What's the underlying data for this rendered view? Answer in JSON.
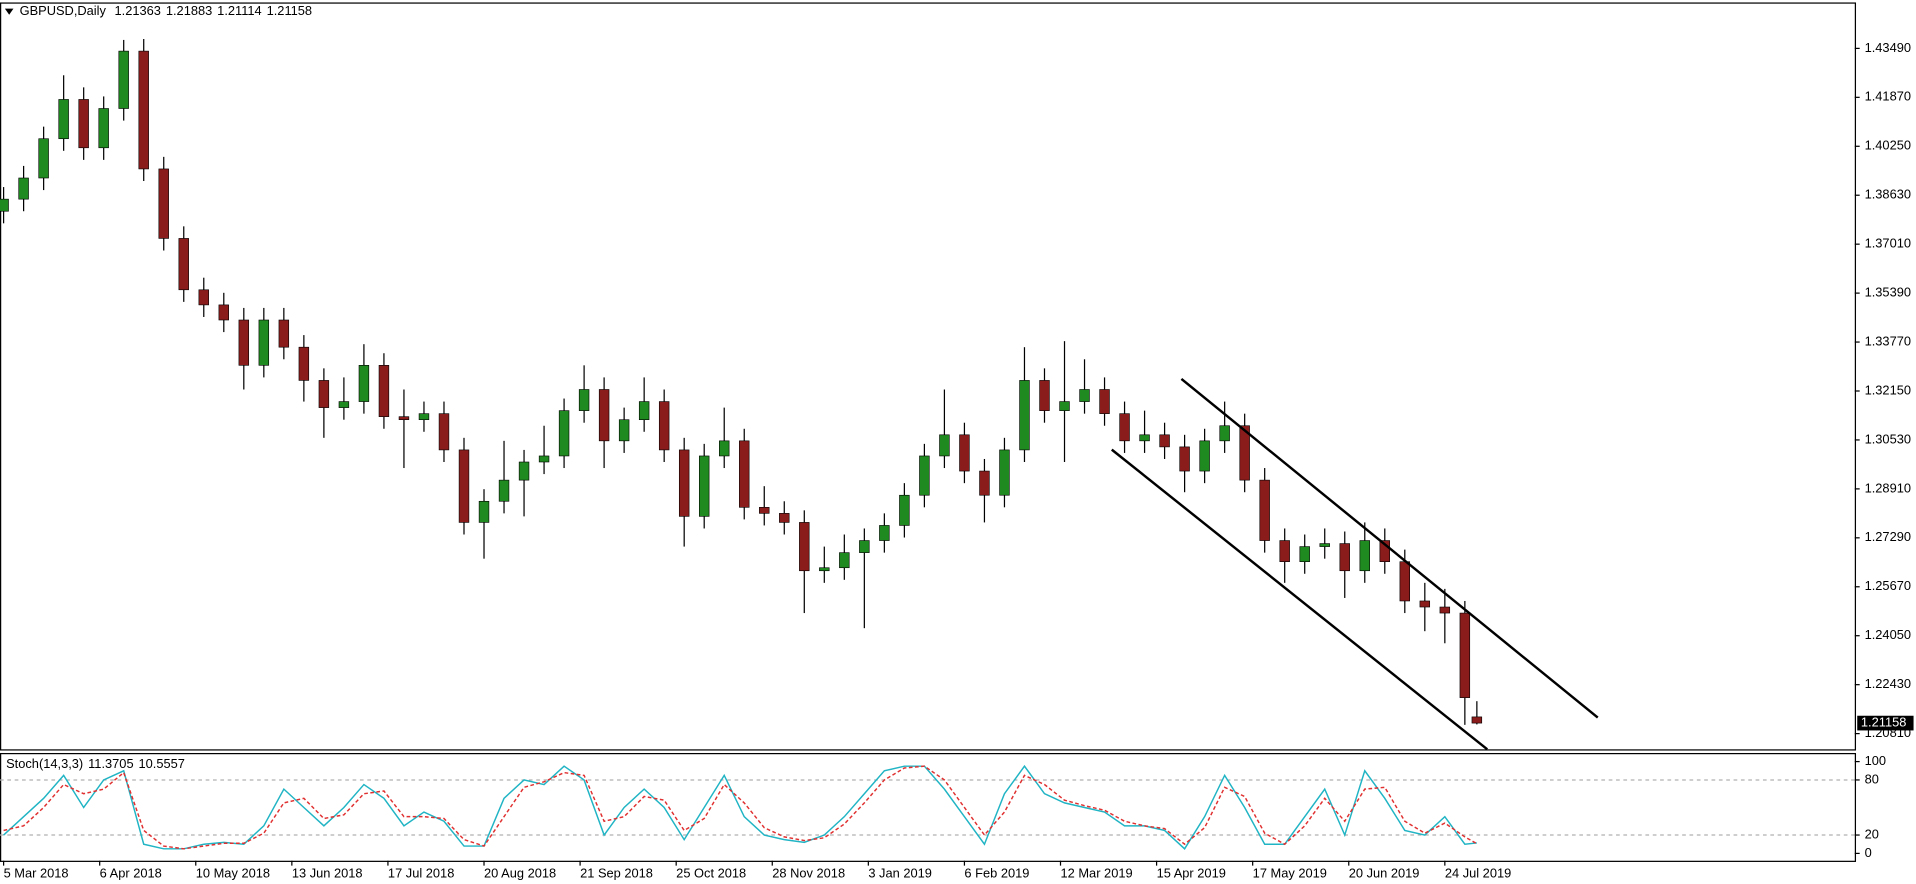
{
  "chart_data": [
    {
      "type": "candlestick",
      "title": "GBPUSD,Daily",
      "x": [
        0,
        5,
        10,
        15,
        20,
        25,
        30,
        35,
        40,
        45,
        50,
        55,
        60,
        65,
        70,
        75,
        80,
        85,
        90,
        95,
        100,
        105,
        110,
        115,
        120,
        125,
        130,
        135,
        140,
        145,
        150,
        155,
        160,
        165,
        170,
        175,
        180,
        185,
        190,
        195,
        200,
        205,
        210,
        215,
        220,
        225,
        230,
        235,
        240,
        245,
        250,
        255,
        260,
        265,
        270,
        275,
        280,
        285,
        290,
        295,
        300,
        305,
        310,
        315,
        320,
        325,
        330,
        335,
        340,
        345,
        350,
        355,
        360,
        365,
        368
      ],
      "open": [
        1.381,
        1.385,
        1.392,
        1.405,
        1.418,
        1.402,
        1.415,
        1.434,
        1.395,
        1.372,
        1.355,
        1.35,
        1.345,
        1.33,
        1.345,
        1.336,
        1.325,
        1.316,
        1.318,
        1.33,
        1.313,
        1.312,
        1.314,
        1.302,
        1.278,
        1.285,
        1.292,
        1.298,
        1.3,
        1.315,
        1.322,
        1.305,
        1.312,
        1.318,
        1.302,
        1.28,
        1.3,
        1.305,
        1.283,
        1.281,
        1.278,
        1.262,
        1.263,
        1.268,
        1.272,
        1.277,
        1.287,
        1.3,
        1.307,
        1.295,
        1.287,
        1.302,
        1.325,
        1.315,
        1.318,
        1.322,
        1.314,
        1.305,
        1.307,
        1.303,
        1.295,
        1.305,
        1.31,
        1.292,
        1.272,
        1.265,
        1.27,
        1.271,
        1.262,
        1.272,
        1.265,
        1.252,
        1.25,
        1.248,
        1.21363
      ],
      "high": [
        1.389,
        1.396,
        1.409,
        1.426,
        1.422,
        1.419,
        1.4377,
        1.438,
        1.399,
        1.376,
        1.359,
        1.354,
        1.349,
        1.349,
        1.349,
        1.34,
        1.329,
        1.326,
        1.337,
        1.334,
        1.322,
        1.318,
        1.318,
        1.306,
        1.289,
        1.305,
        1.302,
        1.31,
        1.319,
        1.33,
        1.326,
        1.316,
        1.326,
        1.322,
        1.306,
        1.304,
        1.316,
        1.309,
        1.29,
        1.285,
        1.282,
        1.27,
        1.274,
        1.276,
        1.281,
        1.291,
        1.304,
        1.322,
        1.311,
        1.299,
        1.306,
        1.336,
        1.329,
        1.338,
        1.332,
        1.326,
        1.318,
        1.315,
        1.311,
        1.307,
        1.309,
        1.318,
        1.314,
        1.296,
        1.276,
        1.274,
        1.276,
        1.275,
        1.278,
        1.276,
        1.269,
        1.258,
        1.256,
        1.252,
        1.21883
      ],
      "low": [
        1.377,
        1.381,
        1.388,
        1.401,
        1.398,
        1.398,
        1.411,
        1.391,
        1.368,
        1.351,
        1.346,
        1.341,
        1.322,
        1.326,
        1.332,
        1.318,
        1.306,
        1.312,
        1.314,
        1.309,
        1.296,
        1.308,
        1.298,
        1.274,
        1.266,
        1.281,
        1.28,
        1.294,
        1.296,
        1.311,
        1.296,
        1.301,
        1.308,
        1.298,
        1.27,
        1.276,
        1.296,
        1.279,
        1.277,
        1.274,
        1.248,
        1.258,
        1.259,
        1.243,
        1.268,
        1.273,
        1.283,
        1.296,
        1.291,
        1.278,
        1.283,
        1.298,
        1.311,
        1.298,
        1.314,
        1.31,
        1.301,
        1.301,
        1.299,
        1.288,
        1.291,
        1.301,
        1.288,
        1.268,
        1.258,
        1.261,
        1.266,
        1.253,
        1.258,
        1.261,
        1.248,
        1.242,
        1.238,
        1.211,
        1.21114
      ],
      "close": [
        1.385,
        1.392,
        1.405,
        1.418,
        1.402,
        1.415,
        1.434,
        1.395,
        1.372,
        1.355,
        1.35,
        1.345,
        1.33,
        1.345,
        1.336,
        1.325,
        1.316,
        1.318,
        1.33,
        1.313,
        1.312,
        1.314,
        1.302,
        1.278,
        1.285,
        1.292,
        1.298,
        1.3,
        1.315,
        1.322,
        1.305,
        1.312,
        1.318,
        1.302,
        1.28,
        1.3,
        1.305,
        1.283,
        1.281,
        1.278,
        1.262,
        1.263,
        1.268,
        1.272,
        1.277,
        1.287,
        1.3,
        1.307,
        1.295,
        1.287,
        1.302,
        1.325,
        1.315,
        1.318,
        1.322,
        1.314,
        1.305,
        1.307,
        1.303,
        1.295,
        1.305,
        1.31,
        1.292,
        1.272,
        1.265,
        1.27,
        1.271,
        1.262,
        1.272,
        1.265,
        1.252,
        1.25,
        1.248,
        1.22,
        1.21158
      ],
      "up_color": "#1f8a1f",
      "down_color": "#8b1c1c",
      "wick_color": "#000000",
      "xlim": [
        -0.9,
        462.4
      ],
      "ylim": [
        1.2029,
        1.4497
      ],
      "yticks": [
        {
          "value": 1.4349,
          "label": "1.43490"
        },
        {
          "value": 1.4187,
          "label": "1.41870"
        },
        {
          "value": 1.4025,
          "label": "1.40250"
        },
        {
          "value": 1.3863,
          "label": "1.38630"
        },
        {
          "value": 1.3701,
          "label": "1.37010"
        },
        {
          "value": 1.3539,
          "label": "1.35390"
        },
        {
          "value": 1.3377,
          "label": "1.33770"
        },
        {
          "value": 1.3215,
          "label": "1.32150"
        },
        {
          "value": 1.3053,
          "label": "1.30530"
        },
        {
          "value": 1.2891,
          "label": "1.28910"
        },
        {
          "value": 1.2729,
          "label": "1.27290"
        },
        {
          "value": 1.2567,
          "label": "1.25670"
        },
        {
          "value": 1.2405,
          "label": "1.24050"
        },
        {
          "value": 1.2243,
          "label": "1.22430"
        },
        {
          "value": 1.2081,
          "label": "1.20810"
        }
      ],
      "xticks": [
        {
          "value": 0,
          "label": "5 Mar 2018"
        },
        {
          "value": 24,
          "label": "6 Apr 2018"
        },
        {
          "value": 48,
          "label": "10 May 2018"
        },
        {
          "value": 72,
          "label": "13 Jun 2018"
        },
        {
          "value": 96,
          "label": "17 Jul 2018"
        },
        {
          "value": 120,
          "label": "20 Aug 2018"
        },
        {
          "value": 144,
          "label": "21 Sep 2018"
        },
        {
          "value": 168,
          "label": "25 Oct 2018"
        },
        {
          "value": 192,
          "label": "28 Nov 2018"
        },
        {
          "value": 216,
          "label": "3 Jan 2019"
        },
        {
          "value": 240,
          "label": "6 Feb 2019"
        },
        {
          "value": 264,
          "label": "12 Mar 2019"
        },
        {
          "value": 288,
          "label": "15 Apr 2019"
        },
        {
          "value": 312,
          "label": "17 May 2019"
        },
        {
          "value": 336,
          "label": "20 Jun 2019"
        },
        {
          "value": 360,
          "label": "24 Jul 2019"
        }
      ],
      "trendlines": [
        {
          "x": [
            294.2,
            398.2
          ],
          "y": [
            1.3255,
            1.2134
          ]
        },
        {
          "x": [
            276.8,
            370.6
          ],
          "y": [
            1.3021,
            1.2029
          ]
        }
      ],
      "trendline_color": "#000000"
    },
    {
      "type": "line",
      "title": "Stoch(14,3,3)",
      "x": [
        0,
        5,
        10,
        15,
        20,
        25,
        30,
        35,
        40,
        45,
        50,
        55,
        60,
        65,
        70,
        75,
        80,
        85,
        90,
        95,
        100,
        105,
        110,
        115,
        120,
        125,
        130,
        135,
        140,
        145,
        150,
        155,
        160,
        165,
        170,
        175,
        180,
        185,
        190,
        195,
        200,
        205,
        210,
        215,
        220,
        225,
        230,
        235,
        240,
        245,
        250,
        255,
        260,
        265,
        270,
        275,
        280,
        285,
        290,
        295,
        300,
        305,
        310,
        315,
        320,
        325,
        330,
        335,
        340,
        345,
        350,
        355,
        360,
        365,
        368
      ],
      "series": [
        {
          "color": "#20b4c4",
          "dashed": false,
          "values": [
            20,
            40,
            60,
            85,
            50,
            80,
            90,
            10,
            5,
            5,
            10,
            12,
            10,
            30,
            70,
            50,
            30,
            50,
            75,
            60,
            30,
            45,
            35,
            8,
            8,
            60,
            80,
            75,
            95,
            80,
            20,
            50,
            70,
            50,
            15,
            50,
            85,
            40,
            20,
            15,
            12,
            20,
            40,
            65,
            90,
            95,
            95,
            70,
            40,
            10,
            65,
            95,
            65,
            55,
            50,
            45,
            30,
            30,
            25,
            5,
            40,
            85,
            50,
            10,
            10,
            40,
            70,
            20,
            90,
            60,
            25,
            20,
            40,
            10,
            11.3705
          ]
        },
        {
          "color": "#e03030",
          "dashed": true,
          "values": [
            25,
            30,
            50,
            75,
            65,
            70,
            88,
            25,
            8,
            5,
            8,
            11,
            11,
            22,
            55,
            60,
            38,
            42,
            65,
            68,
            40,
            40,
            38,
            15,
            8,
            40,
            72,
            78,
            88,
            85,
            35,
            40,
            62,
            58,
            25,
            38,
            75,
            55,
            28,
            18,
            14,
            17,
            32,
            55,
            80,
            93,
            95,
            80,
            50,
            20,
            45,
            85,
            75,
            58,
            52,
            47,
            35,
            30,
            27,
            10,
            28,
            72,
            62,
            22,
            10,
            30,
            60,
            35,
            70,
            72,
            35,
            22,
            33,
            18,
            10.5557
          ]
        }
      ],
      "xlim": [
        -0.9,
        462.4
      ],
      "ylim": [
        -8,
        106.7
      ],
      "yticks": [
        100,
        80,
        20,
        0
      ],
      "levels": [
        80,
        20
      ]
    }
  ]
}
